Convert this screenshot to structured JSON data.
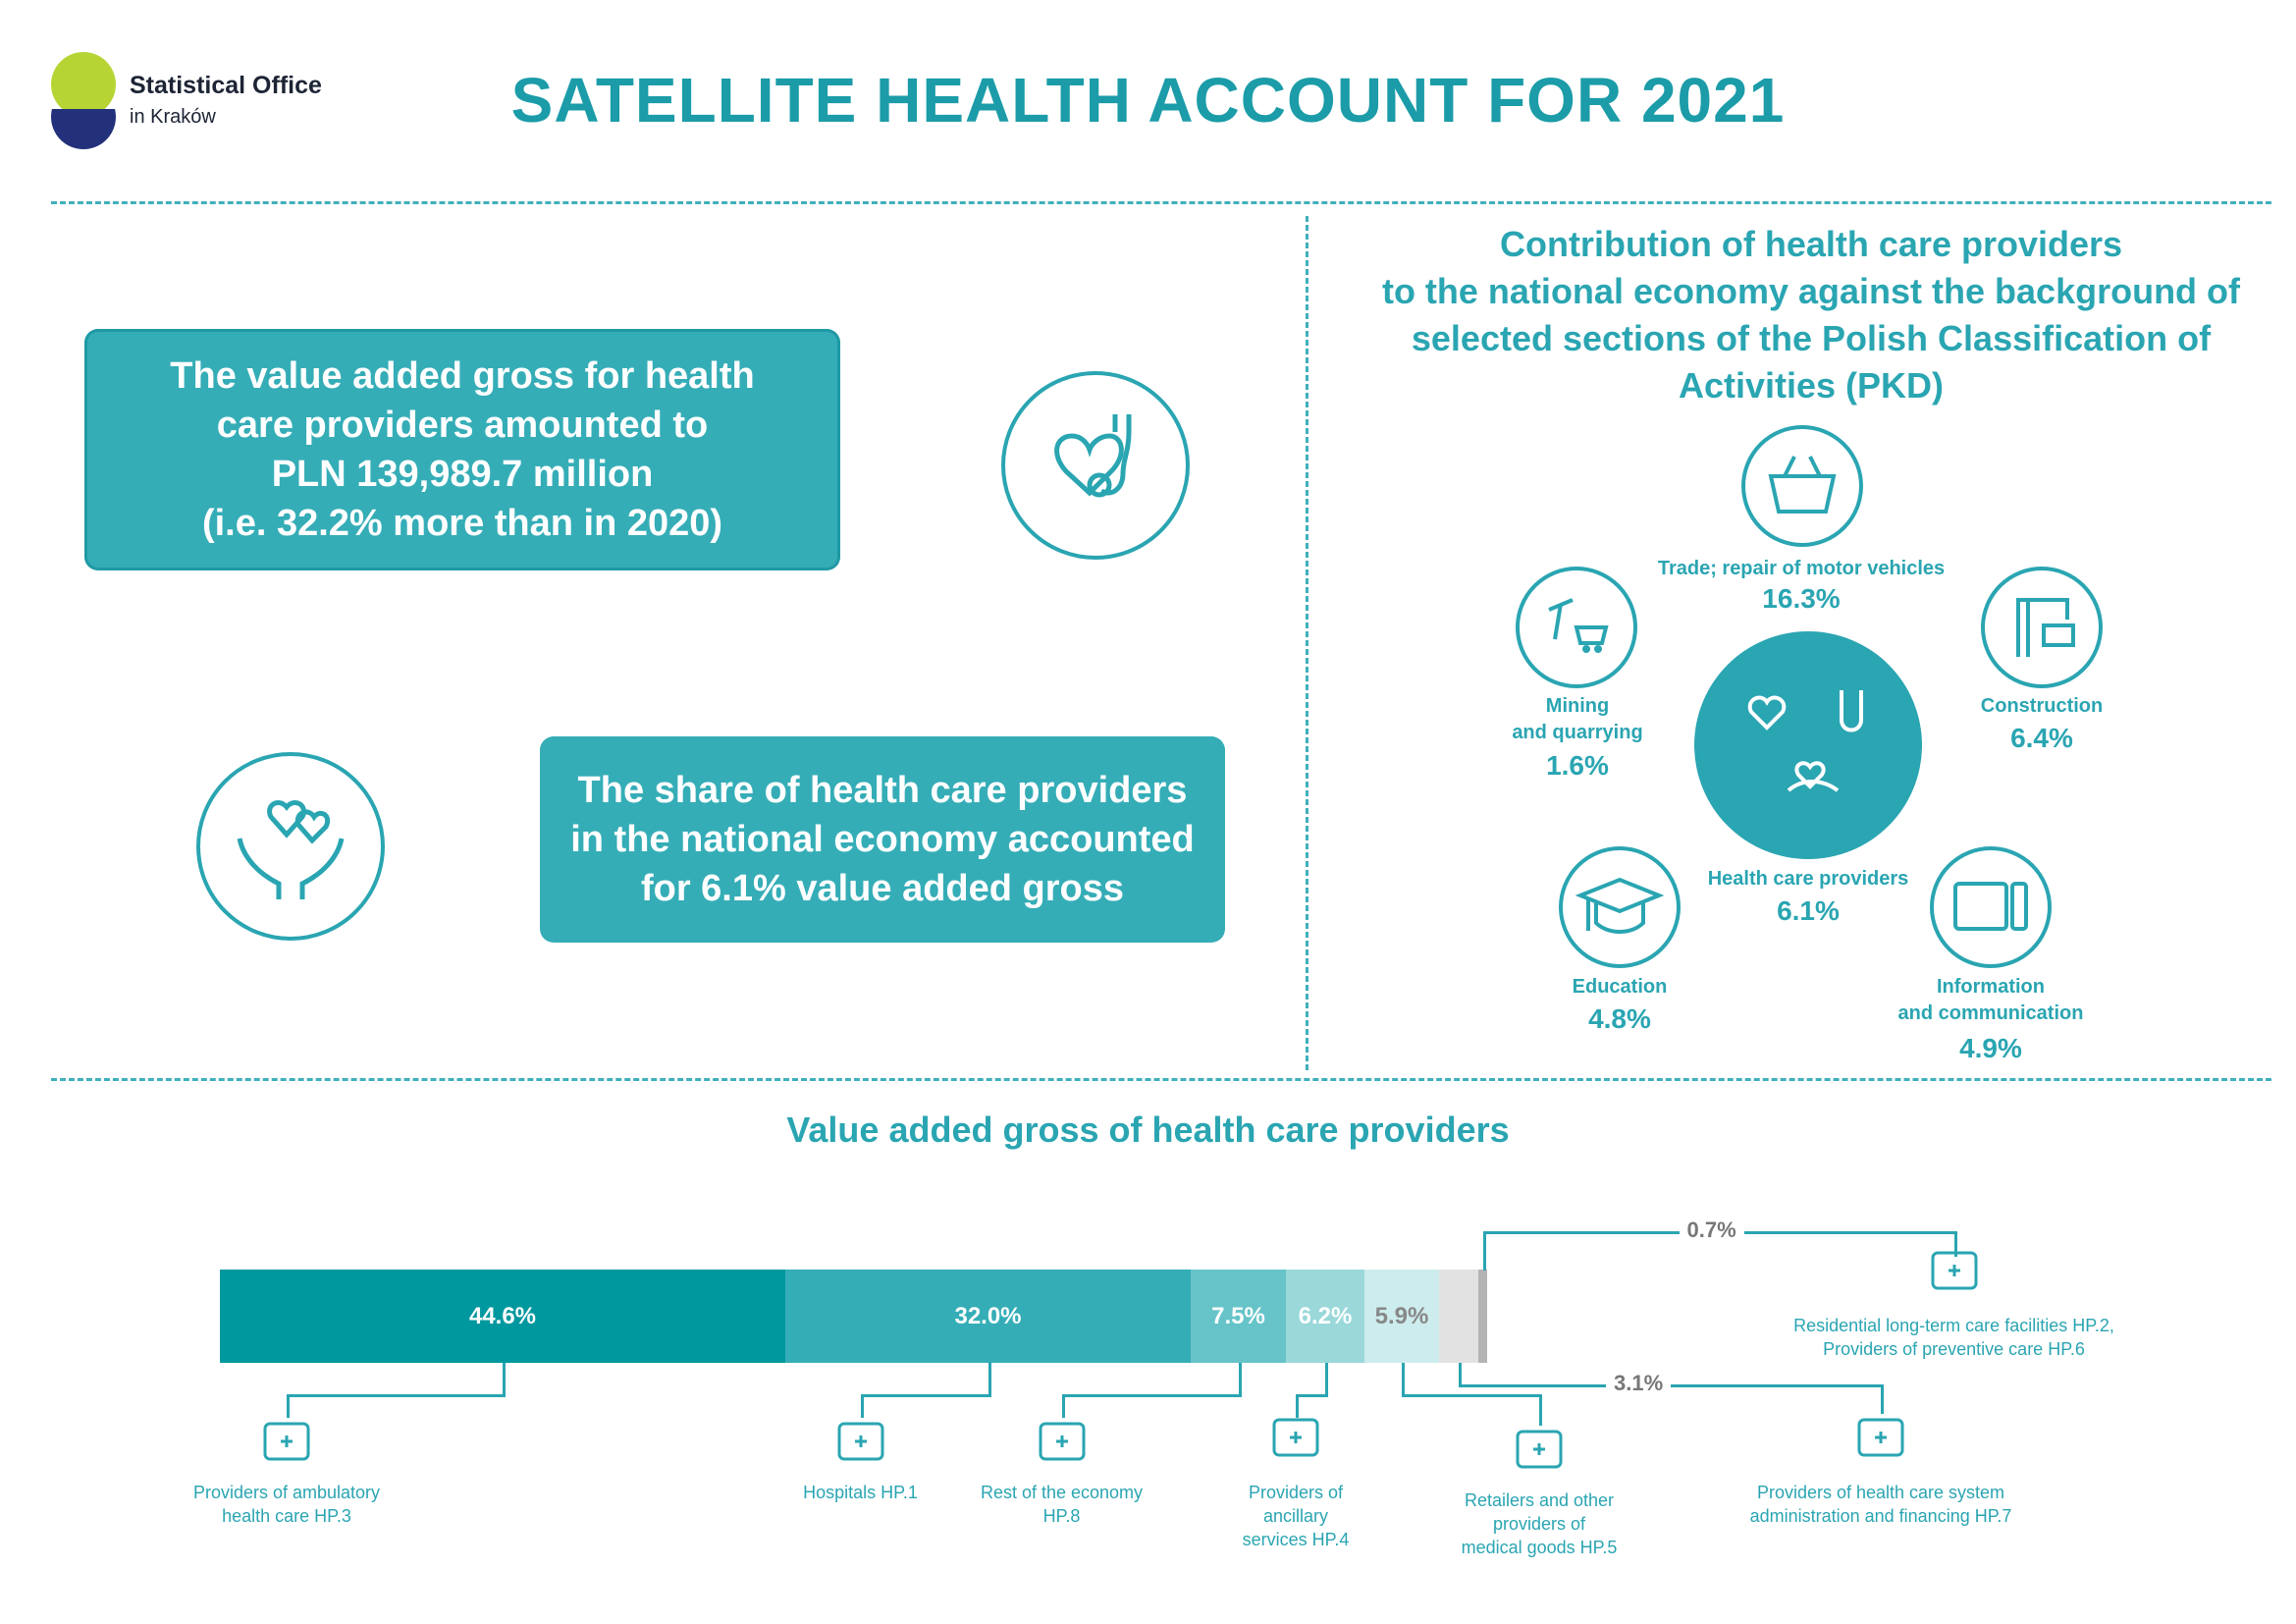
{
  "header": {
    "org_name": "Statistical Office",
    "org_sub": "in Kraków",
    "title": "SATELLITE HEALTH ACCOUNT FOR 2021"
  },
  "highlights": {
    "box1": "The value added gross for health\ncare providers amounted to\nPLN 139,989.7 million\n(i.e. 32.2% more than in 2020)",
    "box2": "The share of health care providers\nin the national economy accounted\nfor 6.1% value added gross"
  },
  "contribution": {
    "title": "Contribution of health care providers\nto the national economy against the background of\nselected sections of the Polish Classification of\nActivities (PKD)",
    "sections": [
      {
        "label": "Trade; repair of motor vehicles",
        "value": "16.3%",
        "icon": "shopping-basket-icon"
      },
      {
        "label": "Mining\nand quarrying",
        "value": "1.6%",
        "icon": "mining-cart-icon"
      },
      {
        "label": "Construction",
        "value": "6.4%",
        "icon": "crane-icon"
      },
      {
        "label": "Health care providers",
        "value": "6.1%",
        "icon": "health-icons"
      },
      {
        "label": "Education",
        "value": "4.8%",
        "icon": "graduation-cap-icon"
      },
      {
        "label": "Information\nand communication",
        "value": "4.9%",
        "icon": "tablet-remote-icon"
      }
    ]
  },
  "chart_data": {
    "type": "bar",
    "title": "Value added gross of health care providers",
    "stacked": true,
    "unit": "%",
    "series": [
      {
        "name": "Providers of ambulatory\nhealth care HP.3",
        "value": 44.6,
        "label": "44.6%",
        "color": "#00989f",
        "icon": "ambulance-icon"
      },
      {
        "name": "Hospitals HP.1",
        "value": 32.0,
        "label": "32.0%",
        "color": "#35adb7",
        "icon": "hospital-icon"
      },
      {
        "name": "Rest of the economy\nHP.8",
        "value": 7.5,
        "label": "7.5%",
        "color": "#66c4c9",
        "icon": "bed-icon"
      },
      {
        "name": "Providers of\nancillary\nservices HP.4",
        "value": 6.2,
        "label": "6.2%",
        "color": "#9ad8da",
        "icon": "microscope-icon"
      },
      {
        "name": "Retailers and other\nproviders of\nmedical goods HP.5",
        "value": 5.9,
        "label": "5.9%",
        "color": "#cdeced",
        "icon": "pills-icon"
      },
      {
        "name": "Providers of health care system\nadministration and financing HP.7",
        "value": 3.1,
        "label": "3.1%",
        "color": "#e2e2e2",
        "icon": "doctor-icon"
      },
      {
        "name": "Residential long-term care facilities HP.2,\nProviders of preventive care HP.6",
        "value": 0.7,
        "label": "0.7%",
        "color": "#b4b4b4",
        "icon": "syringe-tubes-icon"
      }
    ]
  }
}
